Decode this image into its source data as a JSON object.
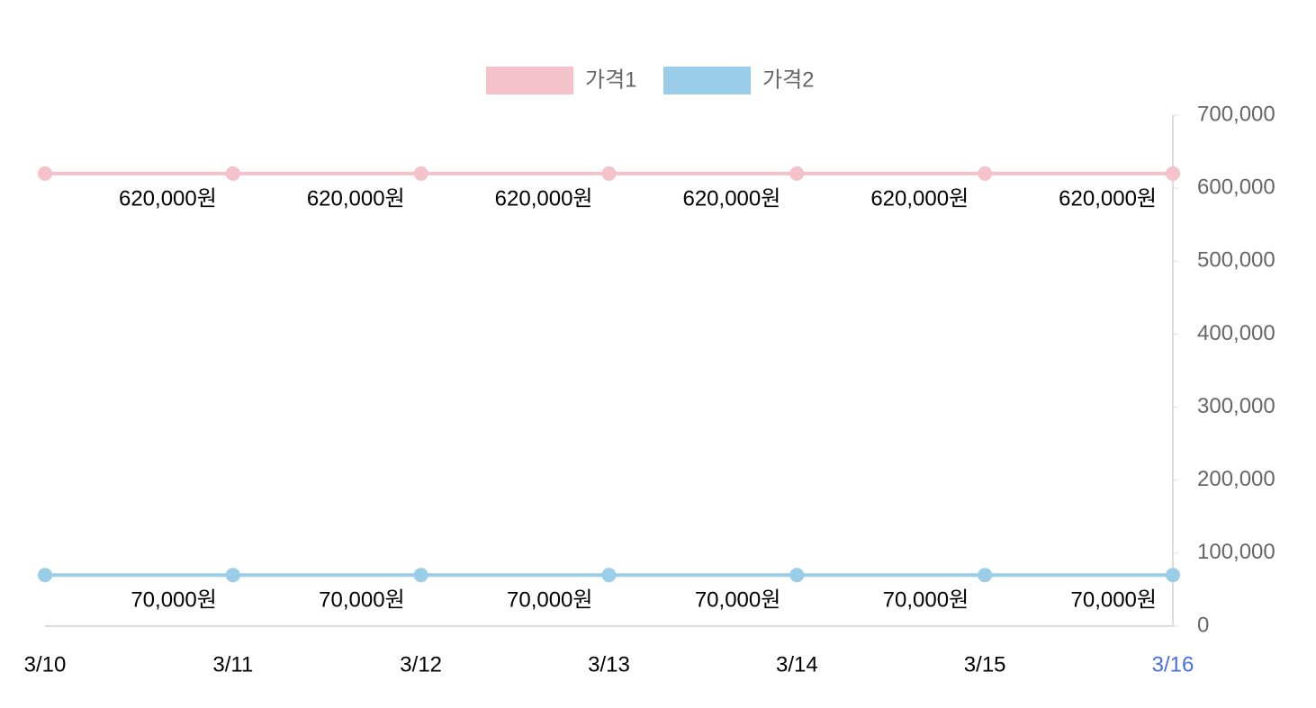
{
  "chart_data": {
    "type": "line",
    "categories": [
      "3/10",
      "3/11",
      "3/12",
      "3/13",
      "3/14",
      "3/15",
      "3/16"
    ],
    "xtick_colors": [
      "#000000",
      "#000000",
      "#000000",
      "#000000",
      "#000000",
      "#000000",
      "#4a6fe0"
    ],
    "series": [
      {
        "name": "가격1",
        "color": "#f5c1cb",
        "values": [
          620000,
          620000,
          620000,
          620000,
          620000,
          620000,
          620000
        ],
        "value_labels": [
          null,
          "620,000원",
          "620,000원",
          "620,000원",
          "620,000원",
          "620,000원",
          "620,000원"
        ]
      },
      {
        "name": "가격2",
        "color": "#99cde8",
        "values": [
          70000,
          70000,
          70000,
          70000,
          70000,
          70000,
          70000
        ],
        "value_labels": [
          null,
          "70,000원",
          "70,000원",
          "70,000원",
          "70,000원",
          "70,000원",
          "70,000원"
        ]
      }
    ],
    "ylim": [
      0,
      700000
    ],
    "yticks": [
      0,
      {
        "value": 100000,
        "label": "100,000"
      },
      {
        "value": 200000,
        "label": "200,000"
      },
      {
        "value": 300000,
        "label": "300,000"
      },
      {
        "value": 400000,
        "label": "400,000"
      },
      {
        "value": 500000,
        "label": "500,000"
      },
      {
        "value": 600000,
        "label": "600,000"
      },
      {
        "value": 700000,
        "label": "700,000"
      }
    ],
    "y_axis_side": "right",
    "grid": false,
    "legend": "top"
  }
}
